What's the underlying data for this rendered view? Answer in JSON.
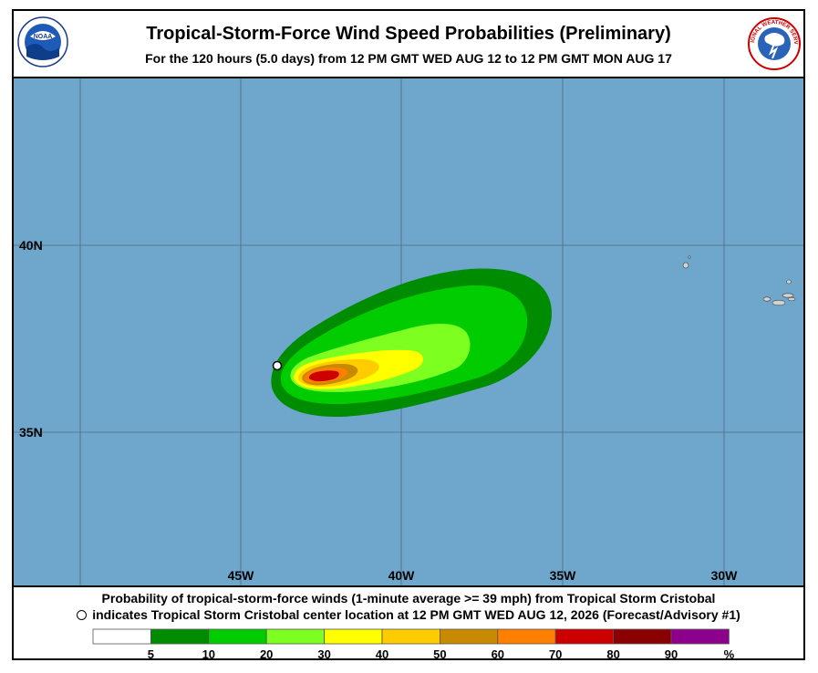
{
  "header": {
    "title": "Tropical-Storm-Force Wind Speed Probabilities (Preliminary)",
    "subtitle": "For the 120 hours (5.0 days) from 12 PM GMT WED AUG 12 to 12 PM GMT MON AUG 17",
    "left_logo": "NOAA",
    "right_logo_text": "NATIONAL WEATHER SERVICE"
  },
  "map": {
    "lat_labels": [
      "40N",
      "35N"
    ],
    "lon_labels": [
      "45W",
      "40W",
      "35W",
      "30W"
    ],
    "ocean_color": "#6ea6cc",
    "grid_color": "#5a5a5a",
    "land_color": "#cfcfcf"
  },
  "footer": {
    "caption_line1": "Probability of tropical-storm-force winds (1-minute average >= 39 mph) from Tropical Storm Cristobal",
    "caption_line2": "indicates Tropical Storm Cristobal center location at 12 PM GMT WED AUG 12, 2026 (Forecast/Advisory #1)"
  },
  "legend": {
    "unit": "%",
    "bins": [
      {
        "label": "5",
        "color": "#ffffff"
      },
      {
        "label": "10",
        "color": "#008c00"
      },
      {
        "label": "20",
        "color": "#00cc00"
      },
      {
        "label": "30",
        "color": "#7dff1f"
      },
      {
        "label": "40",
        "color": "#ffff00"
      },
      {
        "label": "50",
        "color": "#ffcc00"
      },
      {
        "label": "60",
        "color": "#c88a00"
      },
      {
        "label": "70",
        "color": "#ff7f00"
      },
      {
        "label": "80",
        "color": "#cc0000"
      },
      {
        "label": "90",
        "color": "#8b0000"
      },
      {
        "label": "",
        "color": "#8c008c"
      }
    ]
  }
}
